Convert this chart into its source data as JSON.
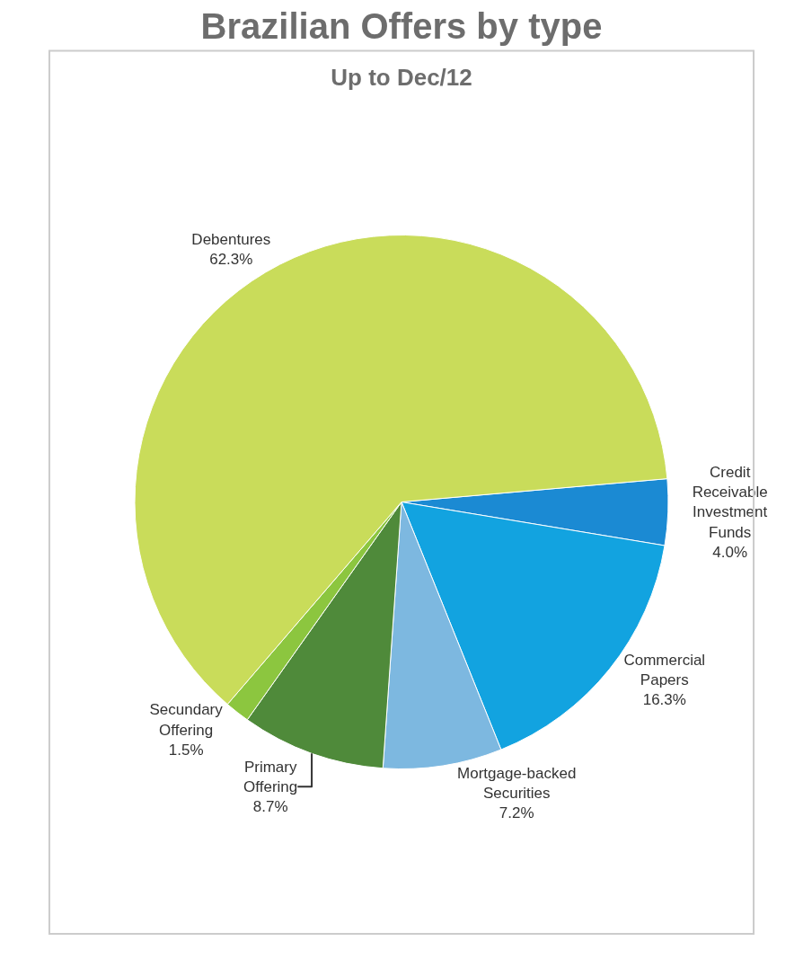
{
  "chart_data": {
    "type": "pie",
    "title": "Brazilian Offers by type",
    "subtitle": "Up to Dec/12",
    "categories": [
      "Credit Receivable Investment Funds",
      "Commercial Papers",
      "Mortgage-backed Securities",
      "Primary Offering",
      "Secundary Offering",
      "Debentures"
    ],
    "values": [
      4.0,
      16.3,
      7.2,
      8.7,
      1.5,
      62.3
    ],
    "value_labels": [
      "4.0%",
      "16.3%",
      "7.2%",
      "8.7%",
      "1.5%",
      "62.3%"
    ],
    "colors": [
      "#1b8ad3",
      "#12a3e0",
      "#7db8e0",
      "#4f8a3a",
      "#8cc63f",
      "#c9dc5a"
    ],
    "legend": false
  }
}
